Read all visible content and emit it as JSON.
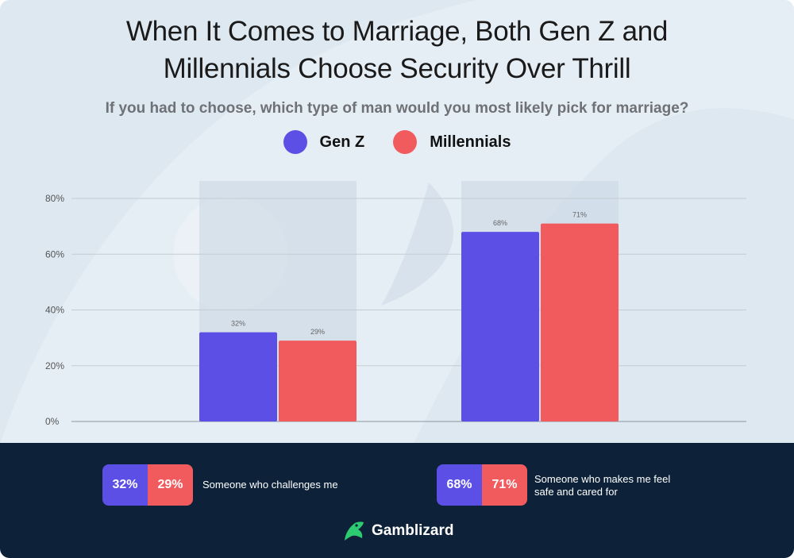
{
  "title_line1": "When It Comes to Marriage, Both Gen Z and",
  "title_line2": "Millennials Choose Security Over Thrill",
  "subtitle": "If you had to choose, which type of man would you most likely pick for marriage?",
  "legend": [
    {
      "name": "Gen Z",
      "color": "#5b4fe6"
    },
    {
      "name": "Millennials",
      "color": "#f25b5e"
    }
  ],
  "chart_data": {
    "type": "bar",
    "title": "When It Comes to Marriage, Both Gen Z and Millennials Choose Security Over Thrill",
    "categories": [
      "Someone who challenges me",
      "Someone who makes me feel safe and cared for"
    ],
    "series": [
      {
        "name": "Gen Z",
        "values": [
          32,
          68
        ],
        "labels": [
          "32%",
          "68%"
        ],
        "color": "#5b4fe6"
      },
      {
        "name": "Millennials",
        "values": [
          29,
          71
        ],
        "labels": [
          "29%",
          "71%"
        ],
        "color": "#f25b5e"
      }
    ],
    "yticks": [
      "0%",
      "20%",
      "40%",
      "60%",
      "80%"
    ],
    "ytick_values": [
      0,
      20,
      40,
      60,
      80
    ],
    "ylim": [
      0,
      80
    ],
    "xlabel": "",
    "ylabel": "",
    "grid": true
  },
  "footer": {
    "items": [
      {
        "genz": "32%",
        "millennials": "29%",
        "label": "Someone who challenges me"
      },
      {
        "genz": "68%",
        "millennials": "71%",
        "label": "Someone who makes me feel safe and cared for"
      }
    ],
    "brand": "Gamblizard",
    "brand_color": "#2ecc71"
  }
}
